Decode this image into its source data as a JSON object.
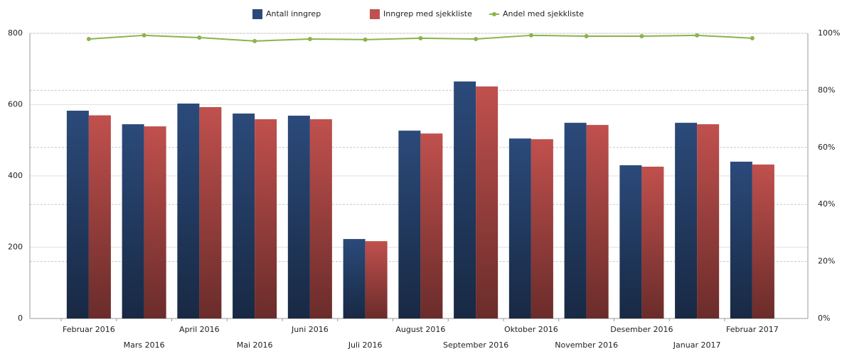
{
  "chart_data": {
    "type": "bar",
    "categories": [
      "Februar 2016",
      "Mars 2016",
      "April 2016",
      "Mai 2016",
      "Juni 2016",
      "Juli 2016",
      "August 2016",
      "September 2016",
      "Oktober 2016",
      "November 2016",
      "Desember 2016",
      "Januar 2017",
      "Februar 2017"
    ],
    "series": [
      {
        "name": "Antall inngrep",
        "color": "#2b4a7a",
        "values": [
          583,
          545,
          603,
          575,
          569,
          223,
          527,
          665,
          505,
          549,
          430,
          549,
          440
        ]
      },
      {
        "name": "Inngrep med sjekkliste",
        "color": "#c0504d",
        "values": [
          570,
          539,
          593,
          559,
          559,
          217,
          519,
          651,
          503,
          543,
          426,
          545,
          432
        ]
      },
      {
        "name": "Andel med sjekkliste",
        "color": "#8ab44a",
        "type": "line",
        "axis": "y2",
        "values": [
          98.0,
          99.3,
          98.5,
          97.3,
          98.0,
          97.8,
          98.3,
          98.0,
          99.3,
          99.0,
          99.0,
          99.3,
          98.3
        ]
      }
    ],
    "ylim": [
      0,
      800
    ],
    "yticks": [
      0,
      200,
      400,
      600,
      800
    ],
    "y2lim": [
      0,
      100
    ],
    "y2ticks": [
      {
        "value": 0,
        "label": "0%"
      },
      {
        "value": 20,
        "label": "20%"
      },
      {
        "value": 40,
        "label": "40%"
      },
      {
        "value": 60,
        "label": "60%"
      },
      {
        "value": 80,
        "label": "80%"
      },
      {
        "value": 100,
        "label": "100%"
      }
    ],
    "grid": true,
    "legend": "top"
  }
}
